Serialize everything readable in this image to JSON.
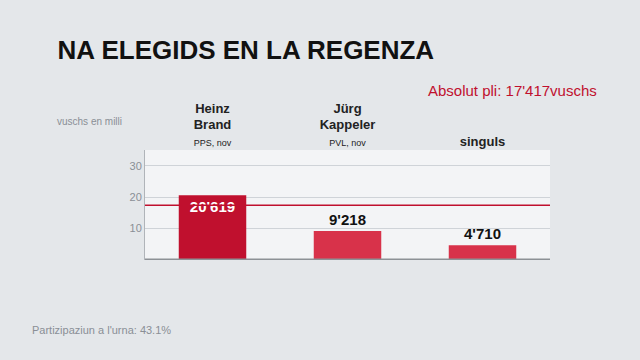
{
  "chart_data": {
    "type": "bar",
    "title": "NA ELEGIDS EN LA REGENZA",
    "ylabel": "vuschs en milli",
    "categories": [
      "Heinz Brand",
      "Jürg Kappeler",
      "singuls"
    ],
    "parties": [
      "PPS, nov",
      "PVL, nov",
      null
    ],
    "values": [
      20.619,
      9.218,
      4.71
    ],
    "value_labels": [
      "20'619",
      "9'218",
      "4'710"
    ],
    "colors": [
      "#c0102e",
      "#d8324a",
      "#d8324a"
    ],
    "ylim": [
      0,
      35
    ],
    "yticks": [
      10,
      20,
      30
    ],
    "grid": true,
    "data_labels": true,
    "majority": {
      "value": 17.417,
      "label": "Absolut pli: 17'417vuschs"
    },
    "footnote": "Partizipaziun a l'urna: 43.1%"
  }
}
